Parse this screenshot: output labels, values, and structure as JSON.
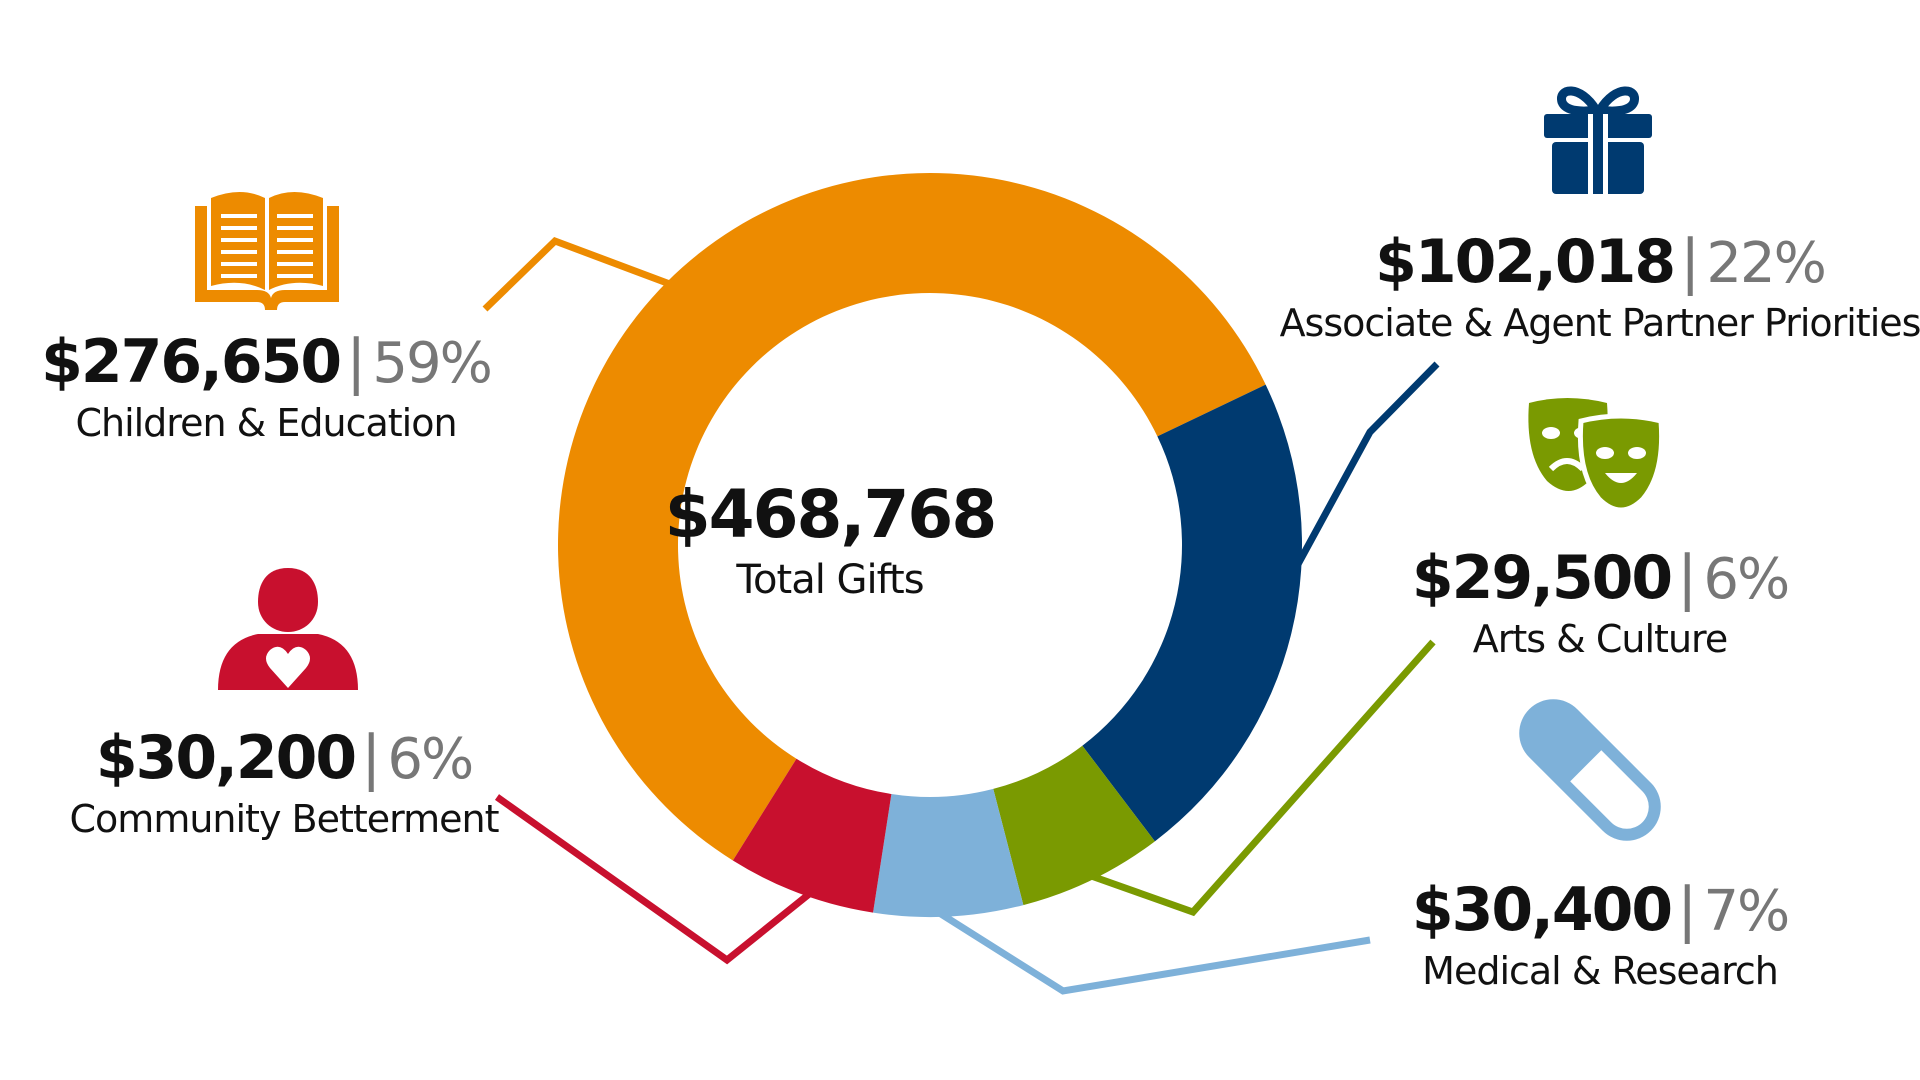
{
  "colors": {
    "orange": "#ED8B00",
    "navy": "#003A70",
    "green": "#7A9A01",
    "light_blue": "#7EB1D9",
    "red": "#C8102E"
  },
  "center": {
    "value": "$468,768",
    "caption": "Total Gifts"
  },
  "separator": "|",
  "chart_data": {
    "type": "pie",
    "donut": true,
    "total": 468768,
    "slices": [
      {
        "name": "Children & Education",
        "value": 276650,
        "amount": "$276,650",
        "percent": "59%",
        "color": "#ED8B00",
        "icon": "book-icon"
      },
      {
        "name": "Associate & Agent Partner Priorities",
        "value": 102018,
        "amount": "$102,018",
        "percent": "22%",
        "color": "#003A70",
        "icon": "gift-icon"
      },
      {
        "name": "Arts & Culture",
        "value": 29500,
        "amount": "$29,500",
        "percent": "6%",
        "color": "#7A9A01",
        "icon": "theater-masks-icon"
      },
      {
        "name": "Medical & Research",
        "value": 30400,
        "amount": "$30,400",
        "percent": "7%",
        "color": "#7EB1D9",
        "icon": "pill-icon"
      },
      {
        "name": "Community Betterment",
        "value": 30200,
        "amount": "$30,200",
        "percent": "6%",
        "color": "#C8102E",
        "icon": "person-heart-icon"
      }
    ]
  }
}
